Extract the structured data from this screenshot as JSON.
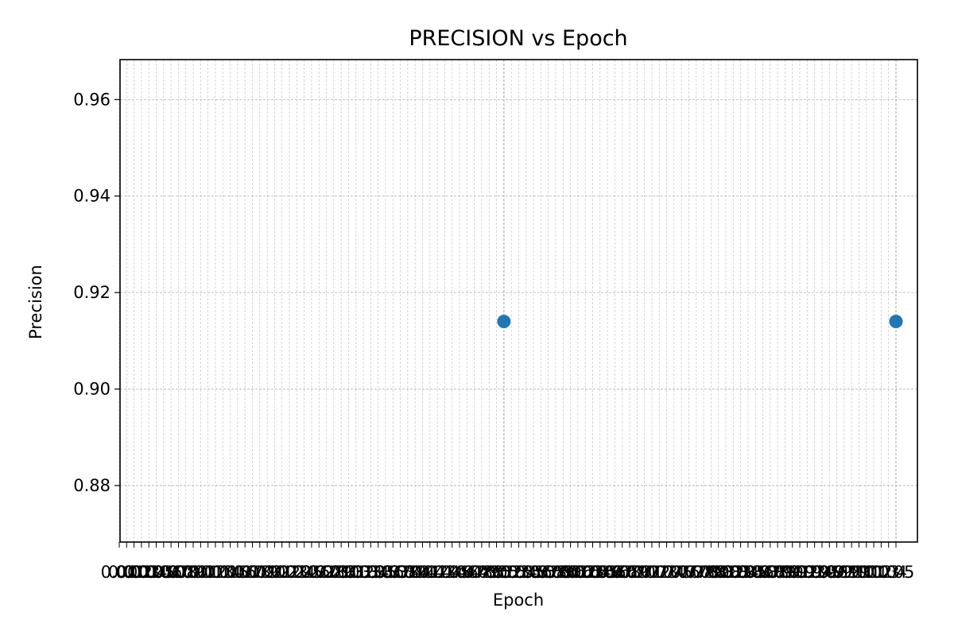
{
  "chart_data": {
    "type": "scatter",
    "title": "PRECISION vs Epoch",
    "xlabel": "Epoch",
    "ylabel": "Precision",
    "xlim": [
      0.0,
      1.05
    ],
    "ylim": [
      0.864,
      0.964
    ],
    "yticks": [
      0.88,
      0.9,
      0.92,
      0.94,
      0.96
    ],
    "ytick_labels": [
      "0.88",
      "0.90",
      "0.92",
      "0.94",
      "0.96"
    ],
    "x_tick_step": 0.01,
    "x_tick_max": 1.05,
    "major_x_ticks": [
      0.52,
      1.05
    ],
    "grid": true,
    "point_color": "#1f77b4",
    "points": [
      {
        "x": 0.52,
        "y": 0.914
      },
      {
        "x": 1.05,
        "y": 0.914
      }
    ]
  }
}
